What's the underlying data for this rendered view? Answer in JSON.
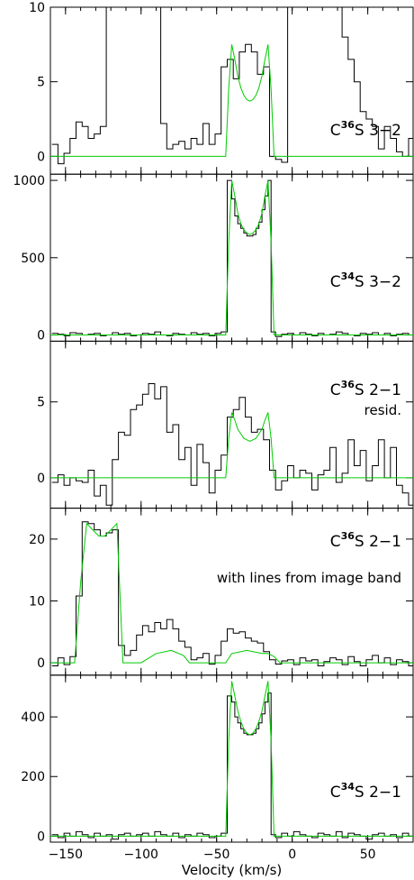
{
  "chart_data": {
    "type": "line",
    "xlabel": "Velocity (km/s)",
    "xlim": [
      -160,
      80
    ],
    "x_ticks": [
      -150,
      -100,
      -50,
      0,
      50
    ],
    "x_tick_labels": [
      "−150",
      "−100",
      "−50",
      "0",
      "50"
    ],
    "colors": {
      "data": "#000000",
      "model": "#00cc00"
    },
    "panels": [
      {
        "label_prefix": "C",
        "label_iso": "36",
        "label_suffix": "S 3−2",
        "note": "",
        "ylim": [
          -1.2,
          10
        ],
        "y_ticks": [
          0,
          5,
          10
        ],
        "y_tick_labels": [
          "0",
          "5",
          "10"
        ],
        "data": {
          "x": [
            -157,
            -153,
            -149,
            -145,
            -141,
            -137,
            -133,
            -129,
            -125,
            -121,
            -117,
            -113,
            -109,
            -105,
            -101,
            -97,
            -93,
            -89,
            -85,
            -81,
            -77,
            -73,
            -69,
            -65,
            -61,
            -57,
            -53,
            -49,
            -45,
            -41,
            -37,
            -33,
            -29,
            -25,
            -21,
            -17,
            -13,
            -9,
            -5,
            -1,
            3,
            7,
            11,
            15,
            19,
            23,
            27,
            31,
            35,
            39,
            43,
            47,
            51,
            55,
            59,
            63,
            67,
            71,
            75,
            79
          ],
          "y": [
            0.8,
            -0.5,
            0.2,
            1.2,
            2.3,
            2.0,
            1.2,
            1.5,
            2.0,
            10,
            10,
            10,
            10,
            10,
            10,
            10,
            10,
            10,
            2.2,
            0.5,
            0.8,
            1.0,
            0.5,
            1.2,
            0.8,
            2.2,
            0.8,
            1.5,
            6.0,
            6.5,
            5.2,
            7.0,
            7.5,
            7.0,
            5.5,
            6.0,
            0.0,
            -0.2,
            -0.4,
            10,
            10,
            10,
            10,
            10,
            10,
            10,
            10,
            10,
            8.0,
            6.5,
            5.0,
            3.0,
            2.5,
            2.0,
            0.5,
            2.0,
            1.2,
            0.3,
            0.0,
            1.2
          ]
        },
        "model": {
          "x": [
            -160,
            -44,
            -42,
            -40,
            -38,
            -36,
            -34,
            -32,
            -30,
            -28,
            -26,
            -24,
            -22,
            -20,
            -18,
            -16,
            -14,
            -12,
            -10,
            80
          ],
          "y": [
            0,
            0,
            4.5,
            7.5,
            6.5,
            5.4,
            4.6,
            4.1,
            3.8,
            3.7,
            3.8,
            4.1,
            4.6,
            5.4,
            6.5,
            7.5,
            4.5,
            0,
            0,
            0
          ]
        }
      },
      {
        "label_prefix": "C",
        "label_iso": "34",
        "label_suffix": "S 3−2",
        "note": "",
        "ylim": [
          -40,
          1040
        ],
        "y_ticks": [
          0,
          500,
          1000
        ],
        "y_tick_labels": [
          "0",
          "500",
          "1000"
        ],
        "data": {
          "x": [
            -157,
            -153,
            -149,
            -145,
            -141,
            -137,
            -133,
            -129,
            -125,
            -121,
            -117,
            -113,
            -109,
            -105,
            -101,
            -97,
            -93,
            -89,
            -85,
            -81,
            -77,
            -73,
            -69,
            -65,
            -61,
            -57,
            -53,
            -49,
            -45,
            -41,
            -39,
            -37,
            -35,
            -33,
            -31,
            -29,
            -27,
            -25,
            -23,
            -21,
            -19,
            -17,
            -15,
            -13,
            -9,
            -5,
            -1,
            3,
            7,
            11,
            15,
            19,
            23,
            27,
            31,
            35,
            39,
            43,
            47,
            51,
            55,
            59,
            63,
            67,
            71,
            75,
            79
          ],
          "y": [
            10,
            5,
            -5,
            15,
            10,
            0,
            5,
            10,
            -5,
            0,
            15,
            5,
            10,
            -5,
            0,
            10,
            5,
            20,
            0,
            -5,
            10,
            5,
            0,
            15,
            5,
            10,
            -5,
            10,
            20,
            1000,
            880,
            770,
            720,
            690,
            660,
            640,
            640,
            650,
            690,
            730,
            810,
            900,
            1000,
            20,
            -10,
            5,
            10,
            0,
            15,
            5,
            -5,
            10,
            0,
            5,
            20,
            10,
            0,
            -5,
            10,
            5,
            15,
            0,
            10,
            -5,
            5,
            10,
            0
          ]
        },
        "model": {
          "x": [
            -160,
            -44,
            -42,
            -40,
            -38,
            -36,
            -34,
            -32,
            -30,
            -28,
            -26,
            -24,
            -22,
            -20,
            -18,
            -16,
            -14,
            -12,
            -10,
            80
          ],
          "y": [
            0,
            0,
            600,
            1000,
            900,
            790,
            720,
            680,
            660,
            650,
            660,
            680,
            720,
            790,
            900,
            1000,
            600,
            0,
            0,
            0
          ]
        }
      },
      {
        "label_prefix": "C",
        "label_iso": "36",
        "label_suffix": "S 2−1",
        "note": "resid.",
        "ylim": [
          -2,
          9
        ],
        "y_ticks": [
          0,
          5
        ],
        "y_tick_labels": [
          "0",
          "5"
        ],
        "data": {
          "x": [
            -157,
            -153,
            -149,
            -145,
            -141,
            -137,
            -133,
            -129,
            -125,
            -121,
            -117,
            -113,
            -109,
            -105,
            -101,
            -97,
            -93,
            -89,
            -85,
            -81,
            -77,
            -73,
            -69,
            -65,
            -61,
            -57,
            -53,
            -49,
            -45,
            -41,
            -37,
            -33,
            -29,
            -25,
            -21,
            -17,
            -13,
            -9,
            -5,
            -1,
            3,
            7,
            11,
            15,
            19,
            23,
            27,
            31,
            35,
            39,
            43,
            47,
            51,
            55,
            59,
            63,
            67,
            71,
            75,
            79
          ],
          "y": [
            -0.3,
            0.2,
            -0.5,
            0.0,
            -0.2,
            -0.3,
            0.5,
            -1.2,
            -0.5,
            -1.8,
            1.2,
            3.0,
            2.8,
            4.5,
            4.8,
            5.5,
            6.2,
            5.2,
            6.0,
            3.0,
            3.5,
            1.2,
            2.0,
            -0.5,
            2.2,
            1.0,
            -1.0,
            0.5,
            1.5,
            4.0,
            4.5,
            5.3,
            4.0,
            3.0,
            3.2,
            2.5,
            0.5,
            -0.8,
            -0.2,
            0.8,
            0.0,
            0.5,
            0.3,
            -0.8,
            0.2,
            0.5,
            2.0,
            -0.3,
            0.3,
            2.5,
            0.8,
            1.8,
            -0.2,
            0.8,
            2.5,
            0.0,
            2.0,
            -0.5,
            -1.0,
            -1.8
          ]
        },
        "model": {
          "x": [
            -160,
            -44,
            -42,
            -40,
            -38,
            -36,
            -34,
            -32,
            -30,
            -28,
            -26,
            -24,
            -22,
            -20,
            -18,
            -16,
            -14,
            -12,
            -10,
            80
          ],
          "y": [
            0,
            0,
            2.6,
            4.3,
            3.8,
            3.2,
            2.9,
            2.6,
            2.5,
            2.4,
            2.5,
            2.6,
            2.9,
            3.2,
            3.8,
            4.3,
            2.6,
            0,
            0,
            0
          ]
        }
      },
      {
        "label_prefix": "C",
        "label_iso": "36",
        "label_suffix": "S 2−1",
        "note": "with lines from image band",
        "ylim": [
          -2,
          25
        ],
        "y_ticks": [
          0,
          10,
          20
        ],
        "y_tick_labels": [
          "0",
          "10",
          "20"
        ],
        "data": {
          "x": [
            -157,
            -153,
            -149,
            -145,
            -141,
            -137,
            -133,
            -129,
            -125,
            -121,
            -117,
            -113,
            -109,
            -105,
            -101,
            -97,
            -93,
            -89,
            -85,
            -81,
            -77,
            -73,
            -69,
            -65,
            -61,
            -57,
            -53,
            -49,
            -45,
            -41,
            -37,
            -33,
            -29,
            -25,
            -21,
            -17,
            -13,
            -9,
            -5,
            -1,
            3,
            7,
            11,
            15,
            19,
            23,
            27,
            31,
            35,
            39,
            43,
            47,
            51,
            55,
            59,
            63,
            67,
            71,
            75,
            79
          ],
          "y": [
            -0.5,
            0.8,
            -0.3,
            1.0,
            10.8,
            22.8,
            22.5,
            21.5,
            20.5,
            21.0,
            21.5,
            2.8,
            1.2,
            2.0,
            4.5,
            6.0,
            5.0,
            6.5,
            5.5,
            7.0,
            5.5,
            3.5,
            2.5,
            0.5,
            0.8,
            1.5,
            -0.2,
            1.2,
            3.5,
            5.5,
            4.8,
            5.0,
            4.0,
            3.5,
            3.2,
            1.8,
            0.5,
            -0.2,
            0.3,
            0.5,
            -0.3,
            0.8,
            0.3,
            0.5,
            -0.5,
            0.2,
            0.8,
            0.5,
            -0.3,
            1.0,
            0.2,
            -0.5,
            0.5,
            1.2,
            0.0,
            0.8,
            -0.3,
            0.5,
            0.2,
            -0.5
          ]
        },
        "model": {
          "x": [
            -160,
            -144,
            -140,
            -136,
            -132,
            -128,
            -124,
            -120,
            -116,
            -112,
            -100,
            -90,
            -80,
            -72,
            -68,
            -60,
            -50,
            -44,
            -40,
            -30,
            -20,
            -16,
            -12,
            -8,
            80
          ],
          "y": [
            0,
            0,
            13,
            22.5,
            21.5,
            20.5,
            20.5,
            21.5,
            22.5,
            0,
            0,
            1.5,
            2.0,
            1.2,
            0,
            0,
            0,
            0,
            1.5,
            2.0,
            1.5,
            1.5,
            1.0,
            0,
            0
          ]
        }
      },
      {
        "label_prefix": "C",
        "label_iso": "34",
        "label_suffix": "S 2−1",
        "note": "",
        "ylim": [
          -20,
          540
        ],
        "y_ticks": [
          0,
          200,
          400
        ],
        "y_tick_labels": [
          "0",
          "200",
          "400"
        ],
        "data": {
          "x": [
            -157,
            -153,
            -149,
            -145,
            -141,
            -137,
            -133,
            -129,
            -125,
            -121,
            -117,
            -113,
            -109,
            -105,
            -101,
            -97,
            -93,
            -89,
            -85,
            -81,
            -77,
            -73,
            -69,
            -65,
            -61,
            -57,
            -53,
            -49,
            -45,
            -41,
            -39,
            -37,
            -35,
            -33,
            -31,
            -29,
            -27,
            -25,
            -23,
            -21,
            -19,
            -17,
            -15,
            -13,
            -9,
            -5,
            -1,
            3,
            7,
            11,
            15,
            19,
            23,
            27,
            31,
            35,
            39,
            43,
            47,
            51,
            55,
            59,
            63,
            67,
            71,
            75,
            79
          ],
          "y": [
            5,
            -5,
            10,
            0,
            15,
            5,
            -5,
            10,
            0,
            5,
            -10,
            5,
            10,
            0,
            5,
            10,
            0,
            15,
            5,
            0,
            10,
            -5,
            5,
            0,
            10,
            5,
            -5,
            0,
            10,
            470,
            450,
            400,
            380,
            360,
            345,
            340,
            340,
            345,
            360,
            380,
            410,
            450,
            480,
            5,
            -5,
            10,
            0,
            15,
            5,
            0,
            -5,
            10,
            5,
            0,
            15,
            -5,
            10,
            5,
            0,
            -10,
            5,
            10,
            0,
            5,
            -5,
            10,
            0
          ]
        },
        "model": {
          "x": [
            -160,
            -44,
            -42,
            -40,
            -38,
            -36,
            -34,
            -32,
            -30,
            -28,
            -26,
            -24,
            -22,
            -20,
            -18,
            -16,
            -14,
            -12,
            -10,
            80
          ],
          "y": [
            0,
            0,
            320,
            520,
            470,
            420,
            385,
            360,
            345,
            340,
            345,
            360,
            385,
            420,
            470,
            520,
            320,
            0,
            0,
            0
          ]
        }
      }
    ]
  }
}
